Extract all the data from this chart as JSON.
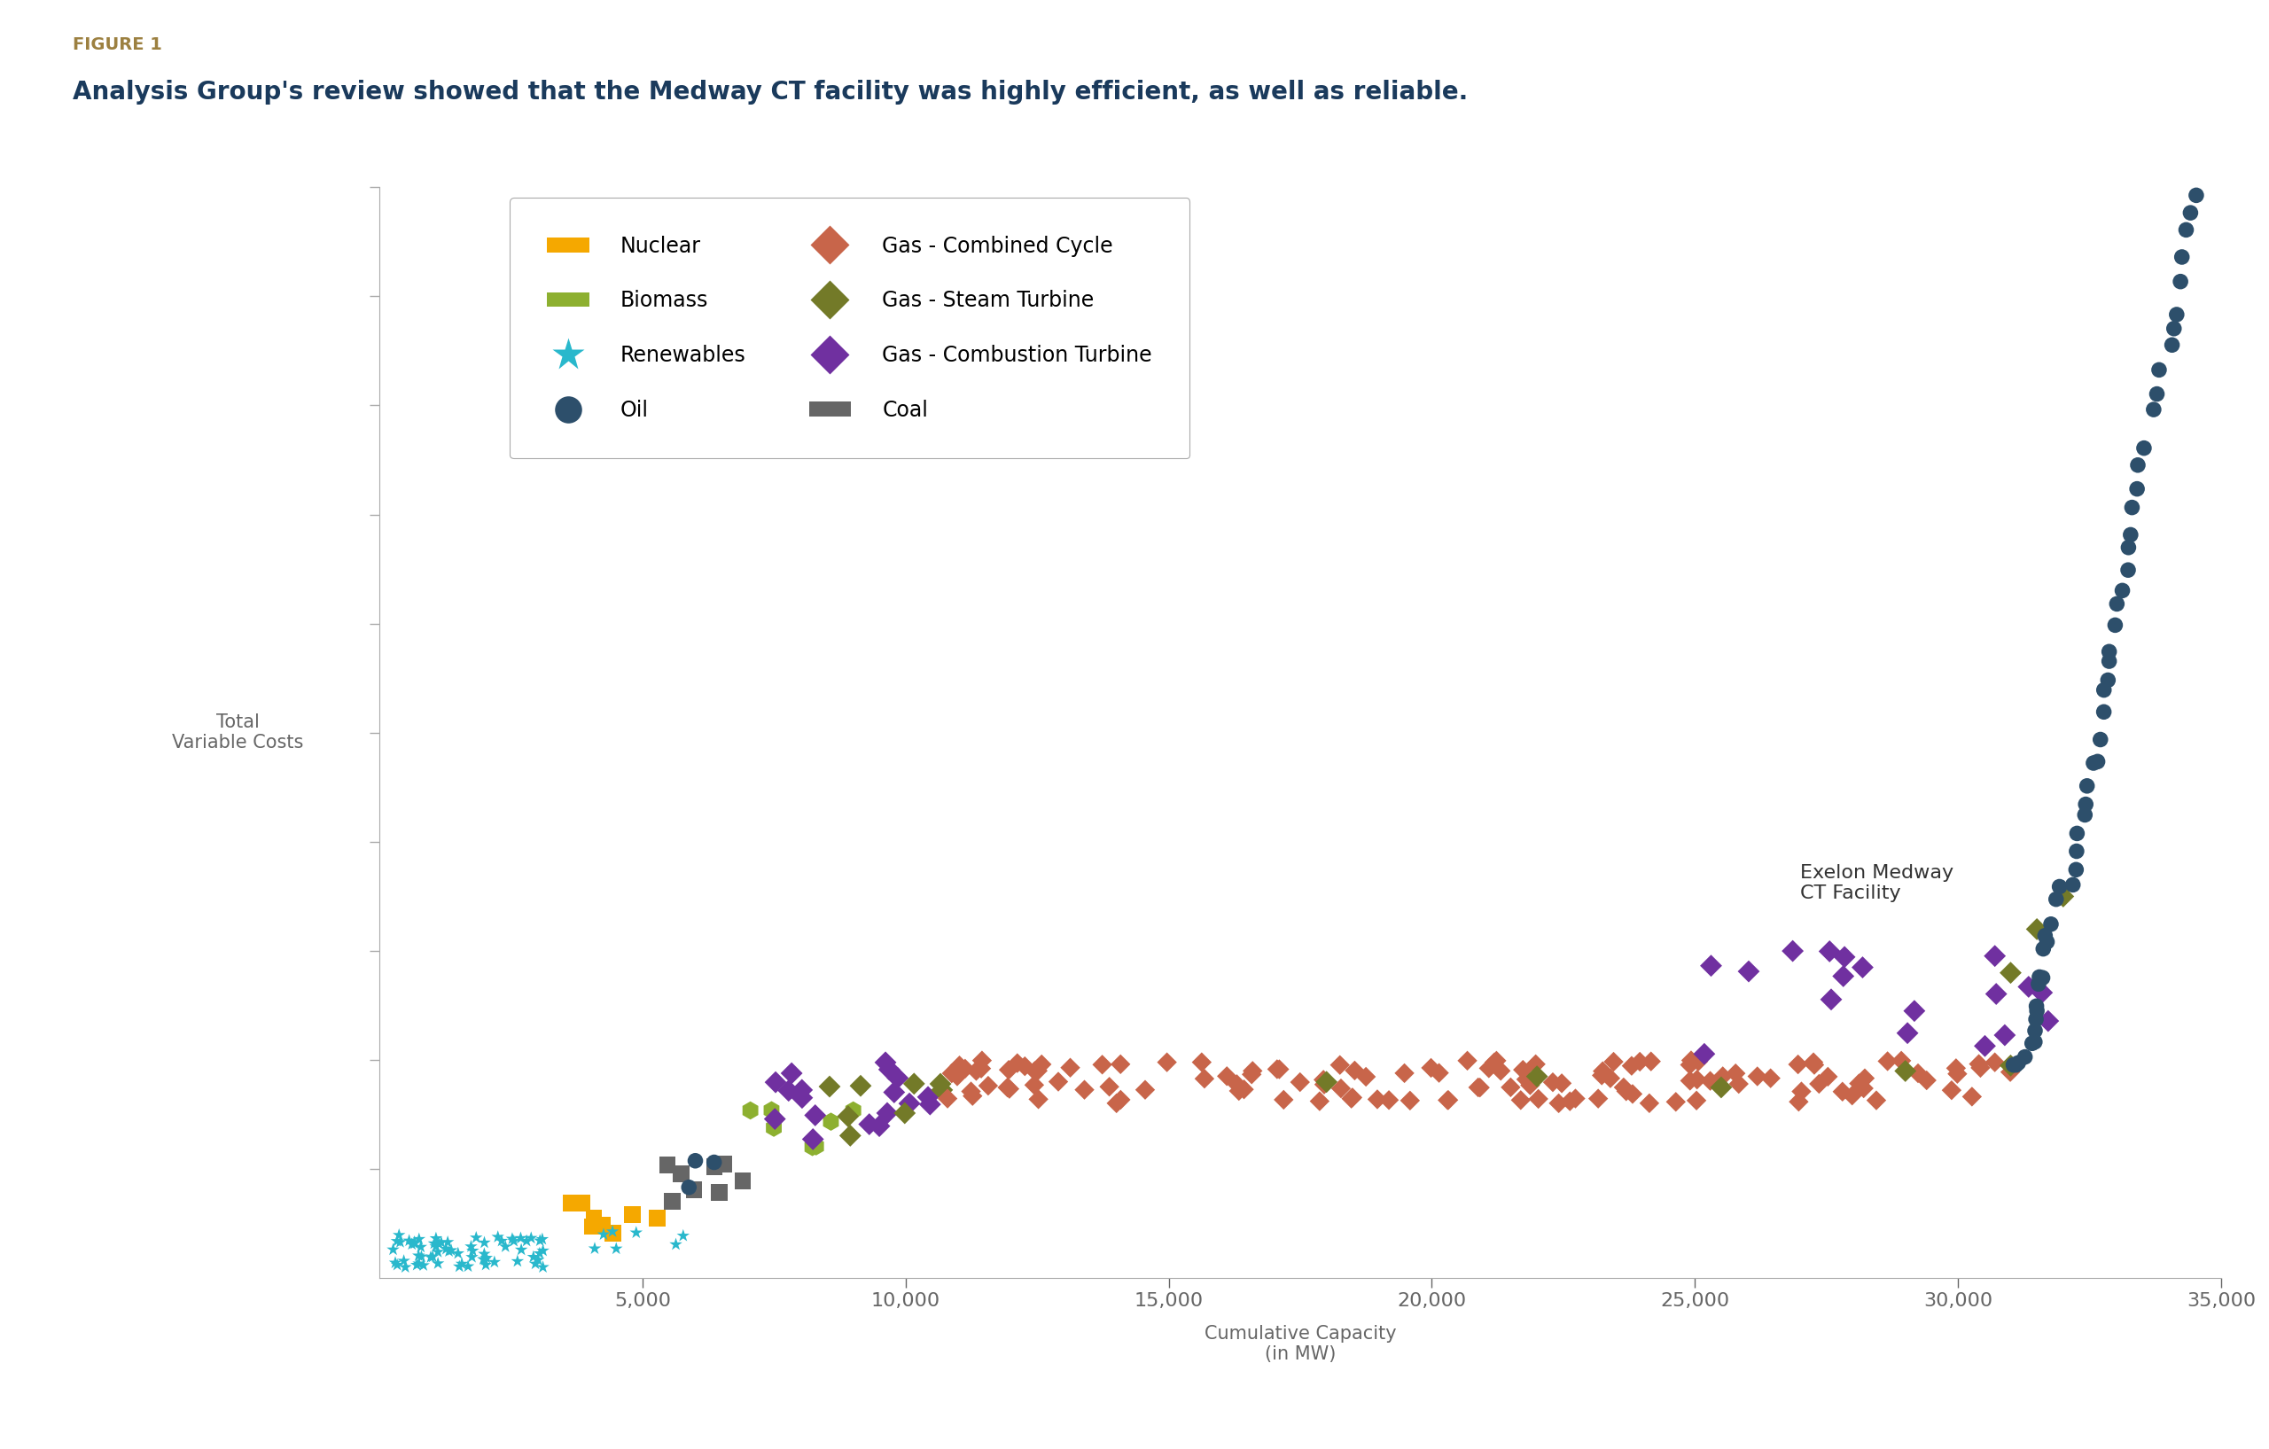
{
  "figure_label": "FIGURE 1",
  "title": "Analysis Group's review showed that the Medway CT facility was highly efficient, as well as reliable.",
  "ylabel": "Total\nVariable Costs",
  "xlabel": "Cumulative Capacity\n(in MW)",
  "annotation": "Exelon Medway\nCT Facility",
  "xlim": [
    0,
    35000
  ],
  "ylim": [
    0,
    1.0
  ],
  "xticks": [
    5000,
    10000,
    15000,
    20000,
    25000,
    30000,
    35000
  ],
  "xtick_labels": [
    "5,000",
    "10,000",
    "15,000",
    "20,000",
    "25,000",
    "30,000",
    "35,000"
  ],
  "background_color": "#ffffff",
  "figure_label_color": "#9c8040",
  "title_color": "#1a3a5c",
  "colors": {
    "nuclear": "#f5a800",
    "biomass": "#8db030",
    "renewables": "#29b8cc",
    "oil": "#2d4f6b",
    "gas_combined": "#c8654a",
    "gas_steam": "#737a28",
    "gas_combustion": "#7030a0",
    "coal": "#666666"
  },
  "legend_labels": {
    "nuclear": "Nuclear",
    "biomass": "Biomass",
    "renewables": "Renewables",
    "oil": "Oil",
    "gas_combined": "Gas - Combined Cycle",
    "gas_steam": "Gas - Steam Turbine",
    "gas_combustion": "Gas - Combustion Turbine",
    "coal": "Coal"
  }
}
